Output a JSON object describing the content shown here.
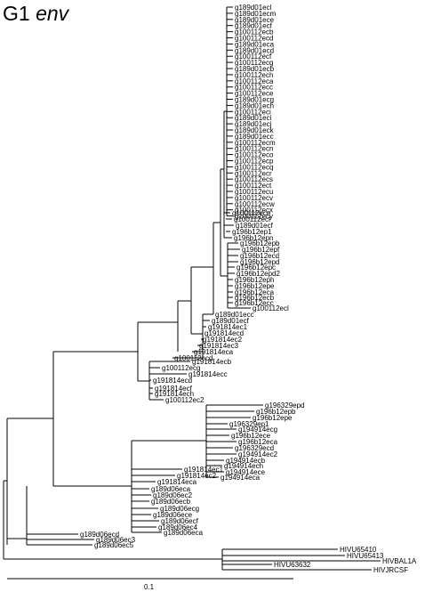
{
  "title": {
    "sample": "G1",
    "gene": "env"
  },
  "scale_bar": {
    "label": "0.1"
  },
  "tips": {
    "a": [
      "g189d01ecl",
      "g189d01ecm",
      "g189d01ece",
      "g189d01ecf",
      "g100112ecb",
      "g100112ecd",
      "g189d01eca",
      "g189d01ecd",
      "g100112ecf",
      "g100112ecg",
      "g189d01ecb",
      "g100112ech",
      "g100112eca",
      "g100112ecc",
      "g100112ece",
      "g189d01ecg",
      "g189d01ech",
      "g100112eci",
      "g189d01eci",
      "g189d01ecj",
      "g189d01eck",
      "g189d01ecc",
      "g100112ecm",
      "g100112ecn",
      "g100112eco",
      "g100112ecp",
      "g100112ecq",
      "g100112ecr",
      "g100112ecs",
      "g100112ect",
      "g100112ecu",
      "g100112ecv",
      "g100112ecw",
      "g100112ecx",
      "g100112ecy"
    ],
    "b": [
      "g100112ece",
      "g100112ecf",
      "g189d01ecf",
      "g196b12ep1",
      "g196b12epn"
    ],
    "c": [
      "g196b12epb",
      "g196b12epf",
      "g196b12ecd",
      "g196b12epd",
      "g196b12epc",
      "g196b12epd2",
      "g196b12eph",
      "g196b12epe",
      "g196b12eca",
      "g196b12ecb",
      "g196b12ecc",
      "g100112ecl"
    ],
    "d": [
      "g189d01ecc",
      "g189d01ecf",
      "g191814ec1",
      "g191814ecd",
      "g191814ec2",
      "g191814ec3",
      "g191814eca",
      "g100112ecd"
    ],
    "e": [
      "g191814ecb",
      "g100112ecg",
      "g191814ecc",
      "g191814ecd",
      "g191814ecf",
      "g191814ech",
      "g100112ec2"
    ],
    "f": [
      "g196329epd",
      "g196b12epb",
      "g196b12epe",
      "g196329ep1",
      "g194914ecg",
      "g196b12ece",
      "g196b12eca",
      "g196329ecd",
      "g194914ec2",
      "g194914ecb",
      "g194914ech",
      "g194914ece",
      "g194914eca"
    ],
    "g": [
      "g191814ec1",
      "g191814ec2",
      "g191814eca",
      "g189d06eca",
      "g189d06ec2",
      "g189d06ecb",
      "g189d06ecg",
      "g189d06ece",
      "g189d06ecf",
      "g189d06ec4",
      "g189d06eca"
    ],
    "h": [
      "g189d06ecd",
      "g189d06ec3",
      "g189d06ec5"
    ],
    "out": [
      "HIVU65410",
      "HIVU65413",
      "HIVBAL1A",
      "HIVU63632",
      "HIVJRCSF"
    ]
  }
}
